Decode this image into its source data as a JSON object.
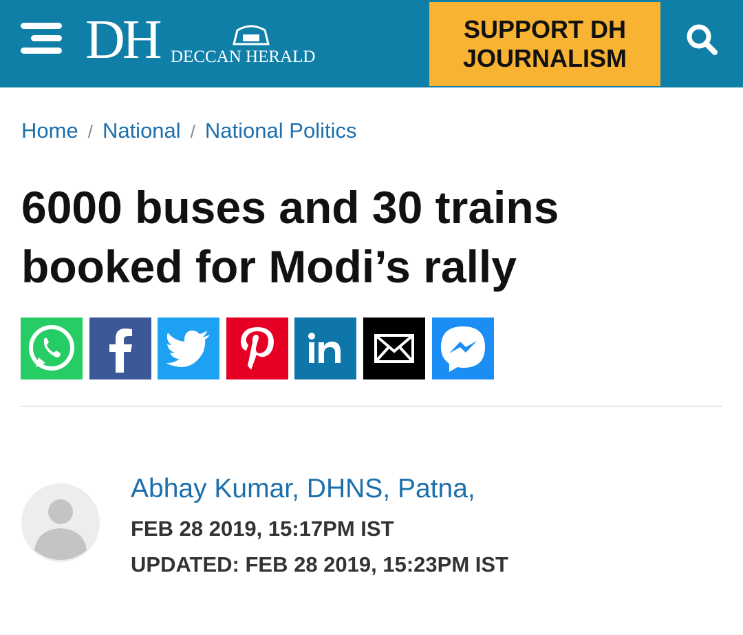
{
  "header": {
    "logo": "DH",
    "brand": "DECCAN HERALD",
    "support_button": "SUPPORT DH JOURNALISM"
  },
  "breadcrumbs": [
    "Home",
    "National",
    "National Politics"
  ],
  "article": {
    "headline": "6000 buses and 30 trains booked for Modi’s rally",
    "author": "Abhay Kumar, DHNS, Patna,",
    "published": "FEB 28 2019, 15:17PM IST",
    "updated": "UPDATED: FEB 28 2019, 15:23PM IST"
  }
}
